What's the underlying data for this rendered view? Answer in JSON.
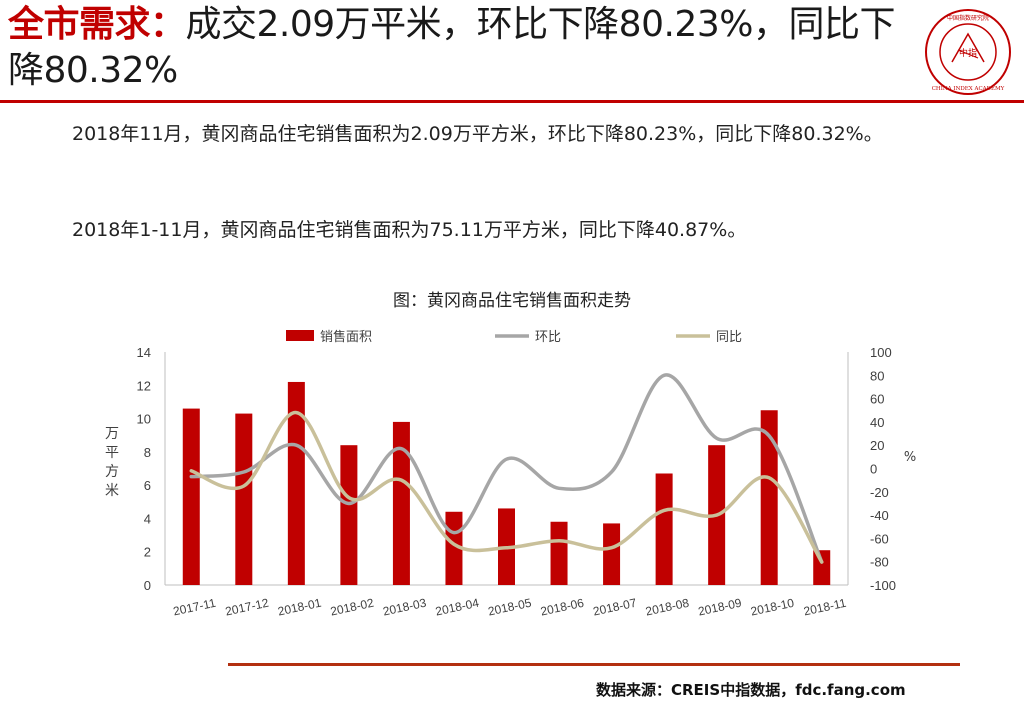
{
  "header": {
    "title_red": "全市需求：",
    "title_rest": "成交2.09万平米，环比下降80.23%，同比下降80.32%"
  },
  "logo": {
    "text_ring": "中国指数研究院 CHINA INDEX ACADEMY",
    "center": "中指"
  },
  "paragraphs": [
    "2018年11月，黄冈商品住宅销售面积为2.09万平方米，环比下降80.23%，同比下降80.32%。",
    "2018年1-11月，黄冈商品住宅销售面积为75.11万平方米，同比下降40.87%。"
  ],
  "chart_data": {
    "type": "bar",
    "title": "图：黄冈商品住宅销售面积走势",
    "categories": [
      "2017-11",
      "2017-12",
      "2018-01",
      "2018-02",
      "2018-03",
      "2018-04",
      "2018-05",
      "2018-06",
      "2018-07",
      "2018-08",
      "2018-09",
      "2018-10",
      "2018-11"
    ],
    "series": [
      {
        "name": "销售面积",
        "type": "bar",
        "axis": "left",
        "color": "#c00000",
        "values": [
          10.6,
          10.3,
          12.2,
          8.4,
          9.8,
          4.4,
          4.6,
          3.8,
          3.7,
          6.7,
          8.4,
          10.5,
          2.09
        ]
      },
      {
        "name": "环比",
        "type": "line",
        "axis": "right",
        "color": "#a6a6a6",
        "values": [
          -7,
          -3,
          20,
          -30,
          17,
          -55,
          8,
          -17,
          -3,
          80,
          26,
          28,
          -80.23
        ]
      },
      {
        "name": "同比",
        "type": "line",
        "axis": "right",
        "color": "#c9c09a",
        "values": [
          -2,
          -15,
          48,
          -25,
          -10,
          -65,
          -68,
          -62,
          -68,
          -36,
          -40,
          -8,
          -80.32
        ]
      }
    ],
    "ylabel": "万平方米",
    "ylim": [
      0,
      14
    ],
    "yticks": [
      0,
      2,
      4,
      6,
      8,
      10,
      12,
      14
    ],
    "y2label": "%",
    "y2lim": [
      -100,
      100
    ],
    "y2ticks": [
      -100,
      -80,
      -60,
      -40,
      -20,
      0,
      20,
      40,
      60,
      80,
      100
    ],
    "legend_position": "top",
    "grid": false
  },
  "footer": {
    "source": "数据来源：CREIS中指数据，fdc.fang.com"
  }
}
